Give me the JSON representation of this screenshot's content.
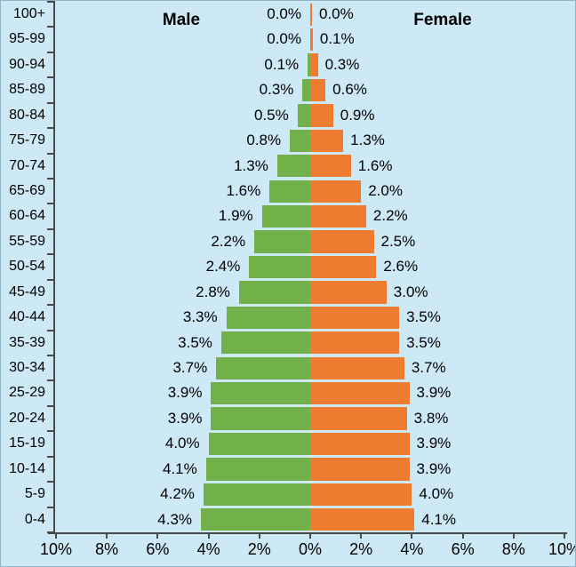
{
  "chart_data": {
    "type": "bar",
    "subtype": "population_pyramid",
    "orientation": "horizontal",
    "title": "",
    "categories": [
      "100+",
      "95-99",
      "90-94",
      "85-89",
      "80-84",
      "75-79",
      "70-74",
      "65-69",
      "60-64",
      "55-59",
      "50-54",
      "45-49",
      "40-44",
      "35-39",
      "30-34",
      "25-29",
      "20-24",
      "15-19",
      "10-14",
      "5-9",
      "0-4"
    ],
    "series": [
      {
        "name": "Male",
        "side": "left",
        "color": "#72b04a",
        "values": [
          0.0,
          0.0,
          0.1,
          0.3,
          0.5,
          0.8,
          1.3,
          1.6,
          1.9,
          2.2,
          2.4,
          2.8,
          3.3,
          3.5,
          3.7,
          3.9,
          3.9,
          4.0,
          4.1,
          4.2,
          4.3
        ]
      },
      {
        "name": "Female",
        "side": "right",
        "color": "#ee7c31",
        "values": [
          0.0,
          0.1,
          0.3,
          0.6,
          0.9,
          1.3,
          1.6,
          2.0,
          2.2,
          2.5,
          2.6,
          3.0,
          3.5,
          3.5,
          3.7,
          3.9,
          3.8,
          3.9,
          3.9,
          4.0,
          4.1
        ]
      }
    ],
    "value_label_format": "percent_one_decimal",
    "x_axis": {
      "ticks": [
        "10%",
        "8%",
        "6%",
        "4%",
        "2%",
        "0%",
        "2%",
        "4%",
        "6%",
        "8%",
        "10%"
      ],
      "max_each_side": 10
    },
    "grid": "off",
    "legend_position": "inside-top",
    "background_color": "#cde9f6",
    "axis_color": "#4a4a4a"
  }
}
